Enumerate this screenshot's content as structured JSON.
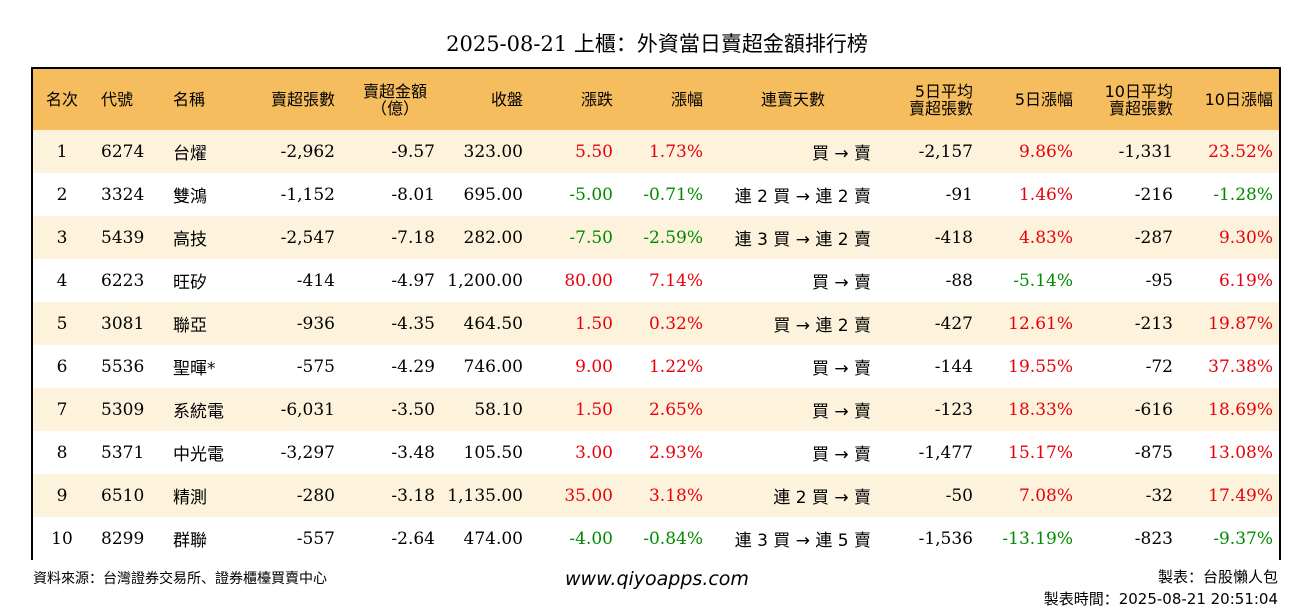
{
  "title": "2025-08-21 上櫃：外資當日賣超金額排行榜",
  "headers": {
    "rank": "名次",
    "code": "代號",
    "name": "名稱",
    "sell_lots": "賣超張數",
    "sell_amount_1": "賣超金額",
    "sell_amount_2": "（億）",
    "close": "收盤",
    "change": "漲跌",
    "pct": "漲幅",
    "streak": "連賣天數",
    "avg5_1": "5日平均",
    "avg5_2": "賣超張數",
    "pct5": "5日漲幅",
    "avg10_1": "10日平均",
    "avg10_2": "賣超張數",
    "pct10": "10日漲幅"
  },
  "rows": [
    {
      "rank": "1",
      "code": "6274",
      "name": "台燿",
      "lots": "-2,962",
      "amount": "-9.57",
      "close": "323.00",
      "change": "5.50",
      "change_color": "red",
      "pct": "1.73%",
      "pct_color": "red",
      "streak": "買 → 賣",
      "avg5": "-2,157",
      "pct5": "9.86%",
      "pct5_color": "red",
      "avg10": "-1,331",
      "pct10": "23.52%",
      "pct10_color": "red"
    },
    {
      "rank": "2",
      "code": "3324",
      "name": "雙鴻",
      "lots": "-1,152",
      "amount": "-8.01",
      "close": "695.00",
      "change": "-5.00",
      "change_color": "green",
      "pct": "-0.71%",
      "pct_color": "green",
      "streak": "連 2 買 → 連 2 賣",
      "avg5": "-91",
      "pct5": "1.46%",
      "pct5_color": "red",
      "avg10": "-216",
      "pct10": "-1.28%",
      "pct10_color": "green"
    },
    {
      "rank": "3",
      "code": "5439",
      "name": "高技",
      "lots": "-2,547",
      "amount": "-7.18",
      "close": "282.00",
      "change": "-7.50",
      "change_color": "green",
      "pct": "-2.59%",
      "pct_color": "green",
      "streak": "連 3 買 → 連 2 賣",
      "avg5": "-418",
      "pct5": "4.83%",
      "pct5_color": "red",
      "avg10": "-287",
      "pct10": "9.30%",
      "pct10_color": "red"
    },
    {
      "rank": "4",
      "code": "6223",
      "name": "旺矽",
      "lots": "-414",
      "amount": "-4.97",
      "close": "1,200.00",
      "change": "80.00",
      "change_color": "red",
      "pct": "7.14%",
      "pct_color": "red",
      "streak": "買 → 賣",
      "avg5": "-88",
      "pct5": "-5.14%",
      "pct5_color": "green",
      "avg10": "-95",
      "pct10": "6.19%",
      "pct10_color": "red"
    },
    {
      "rank": "5",
      "code": "3081",
      "name": "聯亞",
      "lots": "-936",
      "amount": "-4.35",
      "close": "464.50",
      "change": "1.50",
      "change_color": "red",
      "pct": "0.32%",
      "pct_color": "red",
      "streak": "買 → 連 2 賣",
      "avg5": "-427",
      "pct5": "12.61%",
      "pct5_color": "red",
      "avg10": "-213",
      "pct10": "19.87%",
      "pct10_color": "red"
    },
    {
      "rank": "6",
      "code": "5536",
      "name": "聖暉*",
      "lots": "-575",
      "amount": "-4.29",
      "close": "746.00",
      "change": "9.00",
      "change_color": "red",
      "pct": "1.22%",
      "pct_color": "red",
      "streak": "買 → 賣",
      "avg5": "-144",
      "pct5": "19.55%",
      "pct5_color": "red",
      "avg10": "-72",
      "pct10": "37.38%",
      "pct10_color": "red"
    },
    {
      "rank": "7",
      "code": "5309",
      "name": "系統電",
      "lots": "-6,031",
      "amount": "-3.50",
      "close": "58.10",
      "change": "1.50",
      "change_color": "red",
      "pct": "2.65%",
      "pct_color": "red",
      "streak": "買 → 賣",
      "avg5": "-123",
      "pct5": "18.33%",
      "pct5_color": "red",
      "avg10": "-616",
      "pct10": "18.69%",
      "pct10_color": "red"
    },
    {
      "rank": "8",
      "code": "5371",
      "name": "中光電",
      "lots": "-3,297",
      "amount": "-3.48",
      "close": "105.50",
      "change": "3.00",
      "change_color": "red",
      "pct": "2.93%",
      "pct_color": "red",
      "streak": "買 → 賣",
      "avg5": "-1,477",
      "pct5": "15.17%",
      "pct5_color": "red",
      "avg10": "-875",
      "pct10": "13.08%",
      "pct10_color": "red"
    },
    {
      "rank": "9",
      "code": "6510",
      "name": "精測",
      "lots": "-280",
      "amount": "-3.18",
      "close": "1,135.00",
      "change": "35.00",
      "change_color": "red",
      "pct": "3.18%",
      "pct_color": "red",
      "streak": "連 2 買 → 賣",
      "avg5": "-50",
      "pct5": "7.08%",
      "pct5_color": "red",
      "avg10": "-32",
      "pct10": "17.49%",
      "pct10_color": "red"
    },
    {
      "rank": "10",
      "code": "8299",
      "name": "群聯",
      "lots": "-557",
      "amount": "-2.64",
      "close": "474.00",
      "change": "-4.00",
      "change_color": "green",
      "pct": "-0.84%",
      "pct_color": "green",
      "streak": "連 3 買 → 連 5 賣",
      "avg5": "-1,536",
      "pct5": "-13.19%",
      "pct5_color": "green",
      "avg10": "-823",
      "pct10": "-9.37%",
      "pct10_color": "green"
    }
  ],
  "footer": {
    "source": "資料來源：台灣證券交易所、證券櫃檯買賣中心",
    "website": "www.qiyoapps.com",
    "maker": "製表：台股懶人包",
    "made_time": "製表時間：2025-08-21 20:51:04"
  },
  "colors": {
    "header_bg": "#f5bd5d",
    "stripe_bg": "#fdf3dc",
    "up": "#e8000b",
    "down": "#008a00"
  }
}
